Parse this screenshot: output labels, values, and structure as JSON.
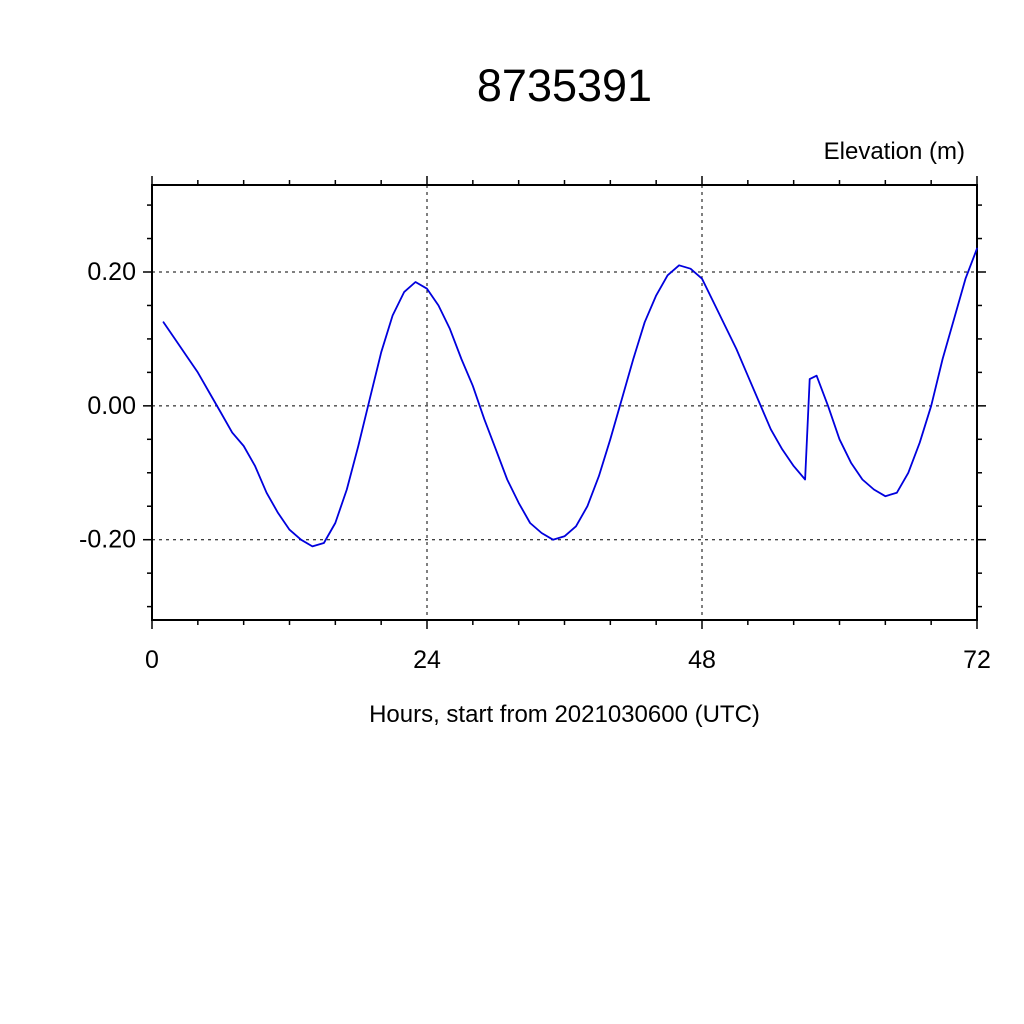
{
  "title": "8735391",
  "ylabel": "Elevation (m)",
  "xlabel": "Hours, start from 2021030600 (UTC)",
  "chart_data": {
    "type": "line",
    "title": "8735391",
    "xlabel": "Hours, start from 2021030600 (UTC)",
    "ylabel": "Elevation (m)",
    "xlim": [
      0,
      72
    ],
    "ylim": [
      -0.32,
      0.33
    ],
    "xticks": [
      0,
      24,
      48,
      72
    ],
    "xtick_labels": [
      "0",
      "24",
      "48",
      "72"
    ],
    "yticks": [
      -0.2,
      0.0,
      0.2
    ],
    "ytick_labels": [
      "-0.20",
      "0.00",
      "0.20"
    ],
    "x_minor_step": 4,
    "y_minor_step": 0.05,
    "grid": "dashed-at-major-ticks",
    "legend": "none",
    "series": [
      {
        "name": "elevation",
        "color": "#0000dd",
        "x": [
          1,
          2,
          3,
          4,
          5,
          6,
          7,
          8,
          9,
          10,
          11,
          12,
          13,
          14,
          15,
          16,
          17,
          18,
          19,
          20,
          21,
          22,
          23,
          24,
          25,
          26,
          27,
          28,
          29,
          30,
          31,
          32,
          33,
          34,
          35,
          36,
          37,
          38,
          39,
          40,
          41,
          42,
          43,
          44,
          45,
          46,
          47,
          48,
          49,
          50,
          51,
          52,
          53,
          54,
          55,
          56,
          57,
          57.4,
          58,
          59,
          60,
          61,
          62,
          63,
          64,
          65,
          66,
          67,
          68,
          69,
          70,
          71,
          72
        ],
        "y": [
          0.125,
          0.1,
          0.075,
          0.05,
          0.02,
          -0.01,
          -0.04,
          -0.06,
          -0.09,
          -0.13,
          -0.16,
          -0.185,
          -0.2,
          -0.21,
          -0.205,
          -0.175,
          -0.125,
          -0.06,
          0.01,
          0.08,
          0.135,
          0.17,
          0.185,
          0.175,
          0.15,
          0.115,
          0.07,
          0.03,
          -0.02,
          -0.065,
          -0.11,
          -0.145,
          -0.175,
          -0.19,
          -0.2,
          -0.195,
          -0.18,
          -0.15,
          -0.105,
          -0.05,
          0.01,
          0.07,
          0.125,
          0.165,
          0.195,
          0.21,
          0.205,
          0.19,
          0.155,
          0.12,
          0.085,
          0.045,
          0.005,
          -0.035,
          -0.065,
          -0.09,
          -0.11,
          0.04,
          0.045,
          0.0,
          -0.05,
          -0.085,
          -0.11,
          -0.125,
          -0.135,
          -0.13,
          -0.1,
          -0.055,
          0.0,
          0.07,
          0.13,
          0.19,
          0.235
        ]
      }
    ]
  }
}
